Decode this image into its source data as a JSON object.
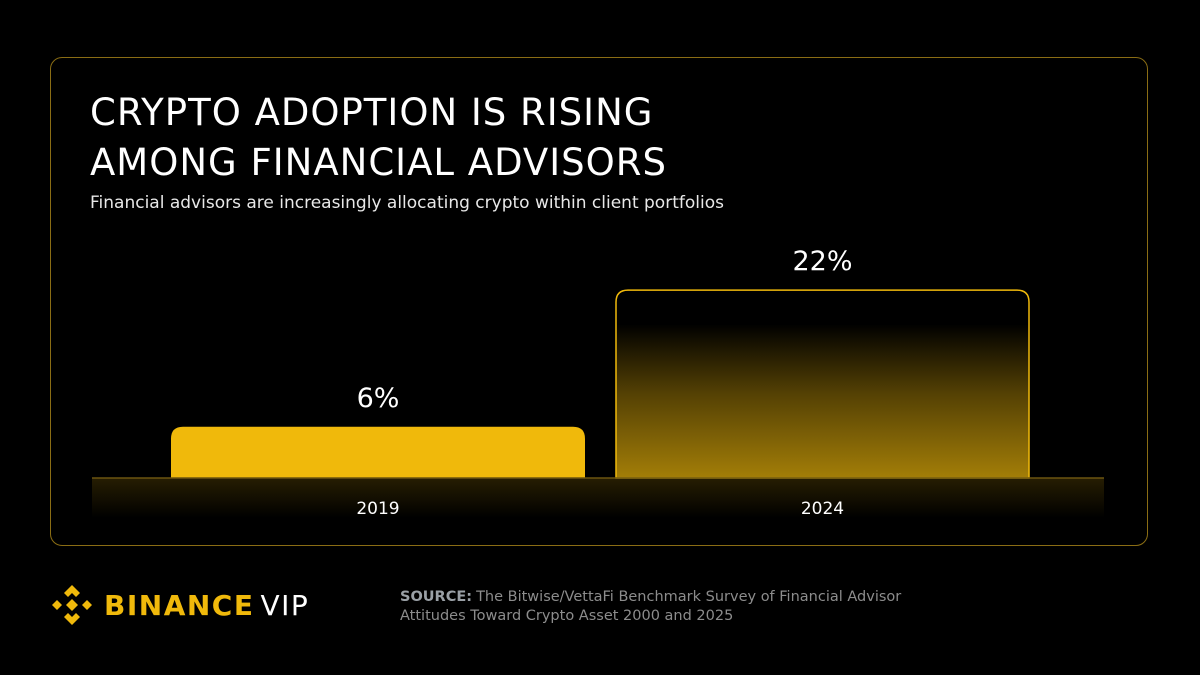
{
  "title_lines": [
    "CRYPTO ADOPTION IS RISING",
    "AMONG FINANCIAL ADVISORS"
  ],
  "subtitle": "Financial advisors are increasingly allocating crypto within client portfolios",
  "colors": {
    "accent": "#F0B90B",
    "border": "#8a6d14",
    "background": "#000000",
    "text": "#ffffff",
    "muted": "#8c8c8c"
  },
  "chart_data": {
    "type": "bar",
    "title": "CRYPTO ADOPTION IS RISING AMONG FINANCIAL ADVISORS",
    "categories": [
      "2019",
      "2024"
    ],
    "values": [
      6,
      22
    ],
    "value_labels": [
      "6%",
      "22%"
    ],
    "unit": "%",
    "ylim": [
      0,
      26
    ],
    "grid": false,
    "xlabel": "",
    "ylabel": ""
  },
  "brand": {
    "name": "BINANCE",
    "suffix": "VIP",
    "logo_icon": "binance-diamond-icon"
  },
  "source": {
    "label": "SOURCE:",
    "text": "The Bitwise/VettaFi Benchmark Survey of Financial Advisor Attitudes Toward Crypto Asset 2000 and 2025"
  }
}
